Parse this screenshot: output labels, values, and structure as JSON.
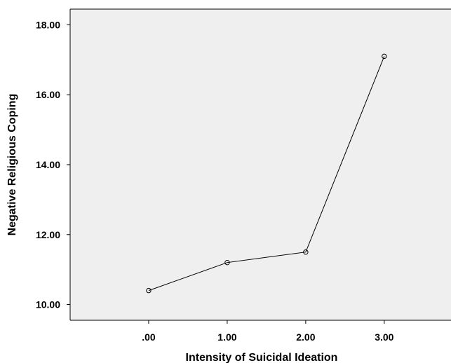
{
  "chart_data": {
    "type": "line",
    "xlabel": "Intensity of Suicidal Ideation",
    "ylabel": "Negative Religious Coping",
    "x": [
      0,
      1,
      2,
      3
    ],
    "x_tick_labels": [
      ".00",
      "1.00",
      "2.00",
      "3.00"
    ],
    "y_tick_values": [
      10,
      12,
      14,
      16,
      18
    ],
    "y_tick_labels": [
      "10.00",
      "12.00",
      "14.00",
      "16.00",
      "18.00"
    ],
    "series": [
      {
        "values": [
          10.4,
          11.2,
          11.5,
          17.1
        ]
      }
    ],
    "xlim": [
      -1.0,
      3.85
    ],
    "ylim": [
      9.55,
      18.45
    ],
    "grid": false,
    "marker": "open-circle",
    "colors": {
      "plot_background": "#efefef",
      "line": "#000000"
    }
  }
}
